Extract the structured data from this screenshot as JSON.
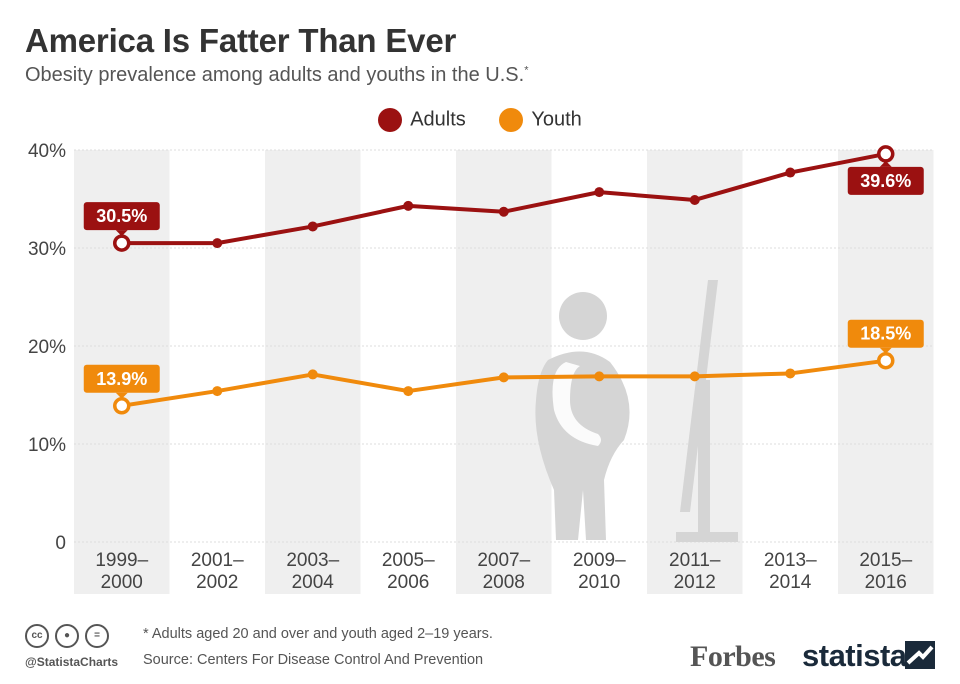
{
  "header": {
    "title": "America Is Fatter Than Ever",
    "subtitle": "Obesity prevalence among adults and youths in the U.S.",
    "subtitle_mark": "*"
  },
  "chart_data": {
    "type": "line",
    "categories": [
      "1999–\n2000",
      "2001–\n2002",
      "2003–\n2004",
      "2005–\n2006",
      "2007–\n2008",
      "2009–\n2010",
      "2011–\n2012",
      "2013–\n2014",
      "2015–\n2016"
    ],
    "series": [
      {
        "name": "Adults",
        "values": [
          30.5,
          30.5,
          32.2,
          34.3,
          33.7,
          35.7,
          34.9,
          37.7,
          39.6
        ],
        "color": "#9b1111"
      },
      {
        "name": "Youth",
        "values": [
          13.9,
          15.4,
          17.1,
          15.4,
          16.8,
          16.9,
          16.9,
          17.2,
          18.5
        ],
        "color": "#f08a0c"
      }
    ],
    "callouts": [
      {
        "series": 0,
        "index": 0,
        "text": "30.5%"
      },
      {
        "series": 0,
        "index": 8,
        "text": "39.6%"
      },
      {
        "series": 1,
        "index": 0,
        "text": "13.9%"
      },
      {
        "series": 1,
        "index": 8,
        "text": "18.5%"
      }
    ],
    "yticks": [
      {
        "value": 0,
        "label": "0"
      },
      {
        "value": 10,
        "label": "10%"
      },
      {
        "value": 20,
        "label": "20%"
      },
      {
        "value": 30,
        "label": "30%"
      },
      {
        "value": 40,
        "label": "40%"
      }
    ],
    "ylim": [
      0,
      40
    ],
    "legend_position": "top-center",
    "grid": true
  },
  "footer": {
    "note": "* Adults aged 20 and over and youth aged 2–19 years.",
    "source": "Source: Centers For Disease Control And Prevention",
    "handle": "@StatistaCharts",
    "brand_forbes": "Forbes",
    "brand_statista": "statista",
    "cc_icons": [
      "cc-icon",
      "by-icon",
      "nd-icon"
    ]
  }
}
